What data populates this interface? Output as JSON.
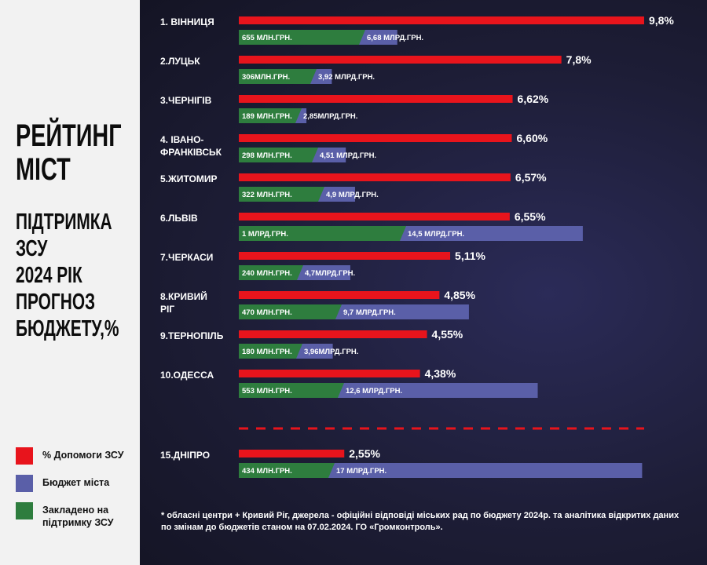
{
  "title_lines": [
    "РЕЙТИНГ",
    "МІСТ"
  ],
  "subtitle_lines": [
    "ПІДТРИМКА",
    "ЗСУ",
    "2024 РІК",
    "ПРОГНОЗ",
    "БЮДЖЕТУ,%"
  ],
  "legend": [
    {
      "label": "% Допомоги ЗСУ",
      "color": "#e8141c"
    },
    {
      "label": "Бюджет міста",
      "color": "#5a5fa8"
    },
    {
      "label": "Закладено на підтримку ЗСУ",
      "color": "#2e7d3e"
    }
  ],
  "footnote": "* обласні центри + Кривий Ріг, джерела - офіційні відповіді міських рад по бюджету 2024р. та аналітика відкритих даних по змінам до бюджетів станом на 07.02.2024. ГО «Громконтроль».",
  "colors": {
    "support_pct": "#e8141c",
    "budget": "#5a5fa8",
    "allocated": "#2e7d3e",
    "divider": "#e8141c"
  },
  "chart_data": {
    "type": "bar",
    "orientation": "horizontal",
    "categories": [
      "1. ВІННИЦЯ",
      "2.ЛУЦЬК",
      "3.ЧЕРНІГІВ",
      "4. ІВАНО-ФРАНКІВСЬК",
      "5.ЖИТОМИР",
      "6.ЛЬВІВ",
      "7.ЧЕРКАСИ",
      "8.КРИВИЙ РІГ",
      "9.ТЕРНОПІЛЬ",
      "10.ОДЕССА",
      "15.ДНІПРО"
    ],
    "category_lines": [
      [
        "1. ВІННИЦЯ"
      ],
      [
        "2.ЛУЦЬК"
      ],
      [
        "3.ЧЕРНІГІВ"
      ],
      [
        "4. ІВАНО-",
        "ФРАНКІВСЬК"
      ],
      [
        "5.ЖИТОМИР"
      ],
      [
        "6.ЛЬВІВ"
      ],
      [
        "7.ЧЕРКАСИ"
      ],
      [
        "8.КРИВИЙ",
        "РІГ"
      ],
      [
        "9.ТЕРНОПІЛЬ"
      ],
      [
        "10.ОДЕССА"
      ],
      [
        "15.ДНІПРО"
      ]
    ],
    "series": [
      {
        "name": "% Допомоги ЗСУ",
        "values": [
          9.8,
          7.8,
          6.62,
          6.6,
          6.57,
          6.55,
          5.11,
          4.85,
          4.55,
          4.38,
          2.55
        ],
        "labels": [
          "9,8%",
          "7,8%",
          "6,62%",
          "6,60%",
          "6,57%",
          "6,55%",
          "5,11%",
          "4,85%",
          "4,55%",
          "4,38%",
          "2,55%"
        ]
      },
      {
        "name": "Бюджет міста",
        "values_bln_uah": [
          6.68,
          3.92,
          2.85,
          4.51,
          4.9,
          14.5,
          4.7,
          9.7,
          3.96,
          12.6,
          17
        ],
        "labels": [
          "6,68 МЛРД.ГРН.",
          "3,92 МЛРД.ГРН.",
          "2,85МЛРД.ГРН.",
          "4,51 МЛРД.ГРН.",
          "4,9 МЛРД.ГРН.",
          "14,5 МЛРД.ГРН.",
          "4,7МЛРД.ГРН.",
          "9,7 МЛРД.ГРН.",
          "3,96МЛРД.ГРН.",
          "12,6 МЛРД.ГРН.",
          "17 МЛРД.ГРН."
        ]
      },
      {
        "name": "Закладено на підтримку ЗСУ",
        "values_mln_uah": [
          655,
          306,
          189,
          298,
          322,
          1000,
          240,
          470,
          180,
          553,
          434
        ],
        "labels": [
          "655 МЛН.ГРН.",
          "306МЛН.ГРН.",
          "189 МЛН.ГРН.",
          "298 МЛН.ГРН.",
          "322 МЛН.ГРН.",
          "1 МЛРД.ГРН.",
          "240 МЛН.ГРН.",
          "470 МЛН.ГРН.",
          "180 МЛН.ГРН.",
          "553 МЛН.ГРН.",
          "434 МЛН.ГРН."
        ]
      }
    ],
    "divider_before_index": 10,
    "grid": false
  }
}
